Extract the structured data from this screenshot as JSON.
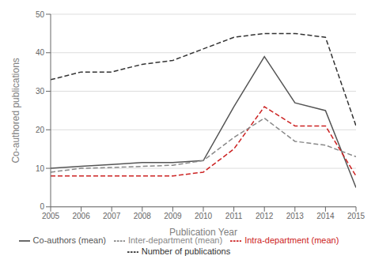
{
  "chart_data": {
    "type": "line",
    "xlabel": "Publication Year",
    "ylabel": "Co-authored publications",
    "x": [
      2005,
      2006,
      2007,
      2008,
      2009,
      2010,
      2011,
      2012,
      2013,
      2014,
      2015
    ],
    "xlim": [
      2005,
      2015
    ],
    "xticks": [
      2005,
      2006,
      2007,
      2008,
      2009,
      2010,
      2011,
      2012,
      2013,
      2014,
      2015
    ],
    "ylim": [
      0,
      50
    ],
    "yticks": [
      0,
      10,
      20,
      30,
      40,
      50
    ],
    "grid": true,
    "legend": "bottom",
    "series": [
      {
        "name": "Co-authors (mean)",
        "color": "#555555",
        "line_style": "solid",
        "values": [
          10,
          10.5,
          11,
          11.5,
          11.5,
          12,
          26,
          39,
          27,
          25,
          5
        ]
      },
      {
        "name": "Intra-department (mean)",
        "color": "#cc2222",
        "line_style": "dashed",
        "values": [
          8,
          8,
          8,
          8,
          8,
          9,
          15,
          26,
          21,
          21,
          8
        ]
      },
      {
        "name": "Inter-department (mean)",
        "color": "#888888",
        "line_style": "dashed",
        "values": [
          9,
          10,
          10.2,
          10.5,
          10.8,
          12,
          18,
          23,
          17,
          16,
          13
        ]
      },
      {
        "name": "Number of publications",
        "color": "#333333",
        "line_style": "dashed",
        "values": [
          33,
          35,
          35,
          37,
          38,
          41,
          44,
          45,
          45,
          44,
          21
        ]
      }
    ]
  }
}
